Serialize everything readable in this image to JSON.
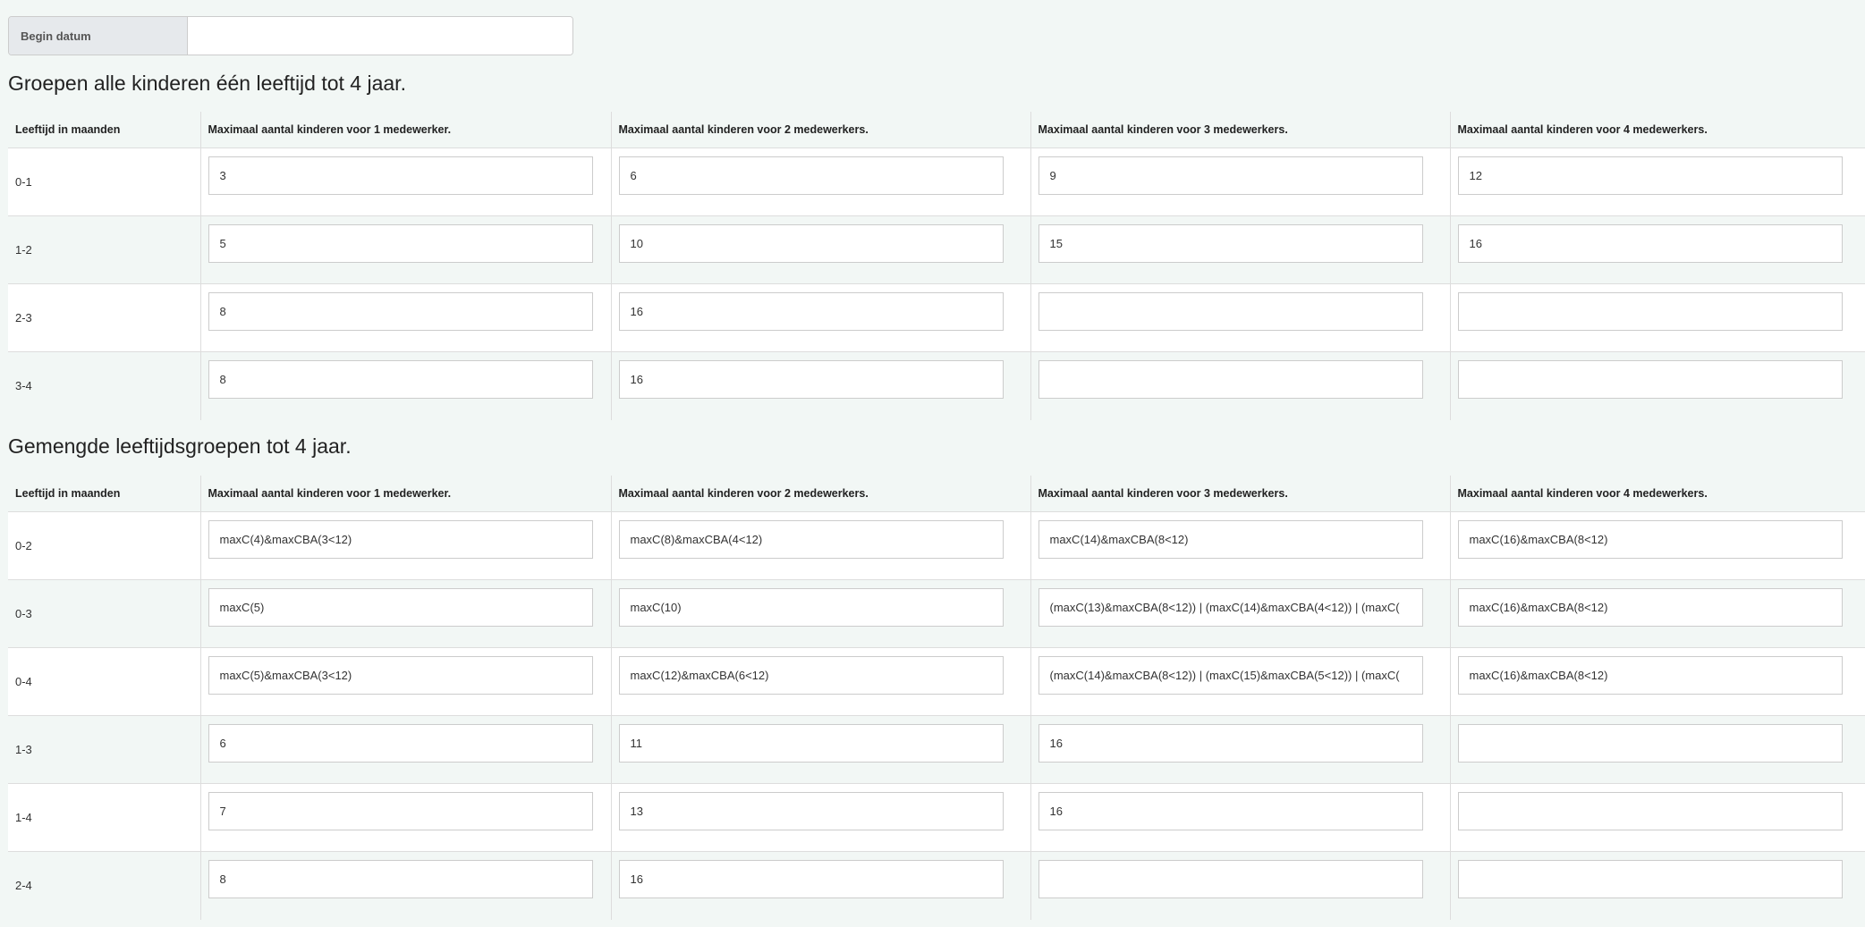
{
  "begin_datum": {
    "label": "Begin datum",
    "value": ""
  },
  "section1": {
    "title": "Groepen alle kinderen één leeftijd tot 4 jaar.",
    "headers": [
      "Leeftijd in maanden",
      "Maximaal aantal kinderen voor 1 medewerker.",
      "Maximaal aantal kinderen voor 2 medewerkers.",
      "Maximaal aantal kinderen voor 3 medewerkers.",
      "Maximaal aantal kinderen voor 4 medewerkers."
    ],
    "rows": [
      {
        "age": "0-1",
        "values": [
          "3",
          "6",
          "9",
          "12"
        ]
      },
      {
        "age": "1-2",
        "values": [
          "5",
          "10",
          "15",
          "16"
        ]
      },
      {
        "age": "2-3",
        "values": [
          "8",
          "16",
          "",
          ""
        ]
      },
      {
        "age": "3-4",
        "values": [
          "8",
          "16",
          "",
          ""
        ]
      }
    ]
  },
  "section2": {
    "title": "Gemengde leeftijdsgroepen tot 4 jaar.",
    "headers": [
      "Leeftijd in maanden",
      "Maximaal aantal kinderen voor 1 medewerker.",
      "Maximaal aantal kinderen voor 2 medewerkers.",
      "Maximaal aantal kinderen voor 3 medewerkers.",
      "Maximaal aantal kinderen voor 4 medewerkers."
    ],
    "rows": [
      {
        "age": "0-2",
        "values": [
          "maxC(4)&maxCBA(3<12)",
          "maxC(8)&maxCBA(4<12)",
          "maxC(14)&maxCBA(8<12)",
          "maxC(16)&maxCBA(8<12)"
        ]
      },
      {
        "age": "0-3",
        "values": [
          "maxC(5)",
          "maxC(10)",
          "(maxC(13)&maxCBA(8<12)) | (maxC(14)&maxCBA(4<12)) | (maxC(",
          "maxC(16)&maxCBA(8<12)"
        ]
      },
      {
        "age": "0-4",
        "values": [
          "maxC(5)&maxCBA(3<12)",
          "maxC(12)&maxCBA(6<12)",
          "(maxC(14)&maxCBA(8<12)) | (maxC(15)&maxCBA(5<12)) | (maxC(",
          "maxC(16)&maxCBA(8<12)"
        ]
      },
      {
        "age": "1-3",
        "values": [
          "6",
          "11",
          "16",
          ""
        ]
      },
      {
        "age": "1-4",
        "values": [
          "7",
          "13",
          "16",
          ""
        ]
      },
      {
        "age": "2-4",
        "values": [
          "8",
          "16",
          "",
          ""
        ]
      }
    ]
  }
}
